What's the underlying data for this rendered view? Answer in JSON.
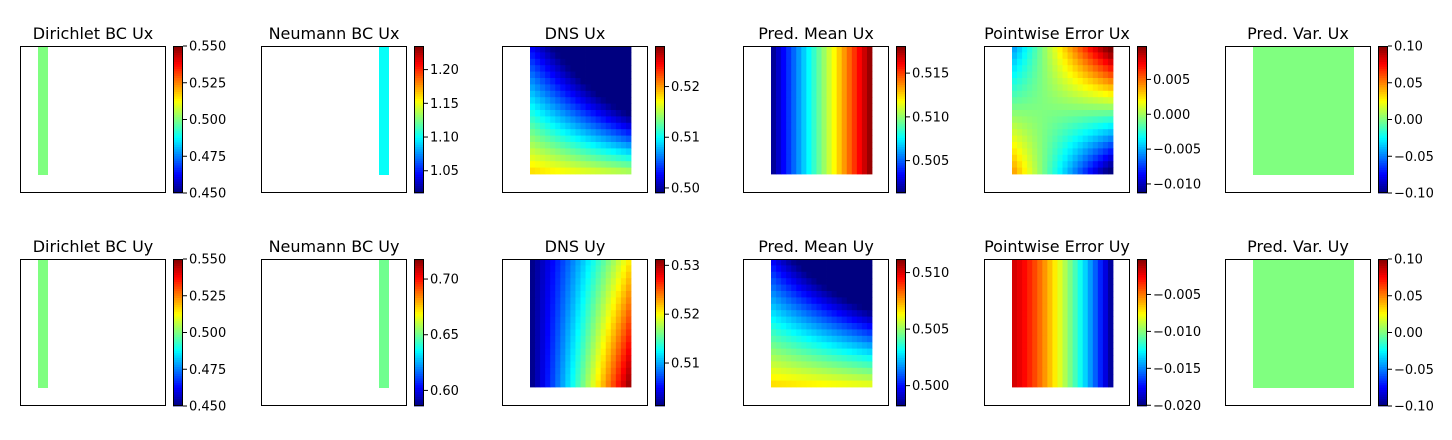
{
  "chart_data": [
    {
      "type": "heatmap",
      "title": "Dirichlet BC Ux",
      "fill": "bar-left",
      "value": 0.5,
      "clim": [
        0.45,
        0.55
      ],
      "cbar_ticks": [
        0.45,
        0.475,
        0.5,
        0.525,
        0.55
      ],
      "cbar_labels": [
        "0.450",
        "0.475",
        "0.500",
        "0.525",
        "0.550"
      ]
    },
    {
      "type": "heatmap",
      "title": "Neumann BC Ux",
      "fill": "bar-right",
      "value": 1.1,
      "clim": [
        1.017,
        1.235
      ],
      "cbar_ticks": [
        1.05,
        1.1,
        1.15,
        1.2
      ],
      "cbar_labels": [
        "1.05",
        "1.10",
        "1.15",
        "1.20"
      ]
    },
    {
      "type": "heatmap",
      "title": "DNS Ux",
      "fill": "field",
      "pattern": "ux-diag",
      "clim": [
        0.499,
        0.528
      ],
      "cbar_ticks": [
        0.5,
        0.51,
        0.52
      ],
      "cbar_labels": [
        "0.50",
        "0.51",
        "0.52"
      ]
    },
    {
      "type": "heatmap",
      "title": "Pred. Mean Ux",
      "fill": "field",
      "pattern": "x-ramp",
      "clim": [
        0.5013,
        0.5181
      ],
      "cbar_ticks": [
        0.505,
        0.51,
        0.515
      ],
      "cbar_labels": [
        "0.505",
        "0.510",
        "0.515"
      ]
    },
    {
      "type": "heatmap",
      "title": "Pointwise Error Ux",
      "fill": "field",
      "pattern": "err-ux",
      "clim": [
        -0.0113,
        0.0098
      ],
      "cbar_ticks": [
        -0.01,
        -0.005,
        0.0,
        0.005
      ],
      "cbar_labels": [
        "−0.010",
        "−0.005",
        "0.000",
        "0.005"
      ]
    },
    {
      "type": "heatmap",
      "title": "Pred. Var. Ux",
      "fill": "const",
      "value": 0.0,
      "clim": [
        -0.1,
        0.1
      ],
      "cbar_ticks": [
        -0.1,
        -0.05,
        0.0,
        0.05,
        0.1
      ],
      "cbar_labels": [
        "−0.10",
        "−0.05",
        "0.00",
        "0.05",
        "0.10"
      ]
    },
    {
      "type": "heatmap",
      "title": "Dirichlet BC Uy",
      "fill": "bar-left",
      "value": 0.5,
      "clim": [
        0.45,
        0.55
      ],
      "cbar_ticks": [
        0.45,
        0.475,
        0.5,
        0.525,
        0.55
      ],
      "cbar_labels": [
        "0.450",
        "0.475",
        "0.500",
        "0.525",
        "0.550"
      ]
    },
    {
      "type": "heatmap",
      "title": "Neumann BC Uy",
      "fill": "bar-right",
      "value": 0.65,
      "clim": [
        0.586,
        0.718
      ],
      "cbar_ticks": [
        0.6,
        0.65,
        0.7
      ],
      "cbar_labels": [
        "0.60",
        "0.65",
        "0.70"
      ]
    },
    {
      "type": "heatmap",
      "title": "DNS Uy",
      "fill": "field",
      "pattern": "uy-ramp",
      "clim": [
        0.5012,
        0.5313
      ],
      "cbar_ticks": [
        0.51,
        0.52,
        0.53
      ],
      "cbar_labels": [
        "0.51",
        "0.52",
        "0.53"
      ]
    },
    {
      "type": "heatmap",
      "title": "Pred. Mean Uy",
      "fill": "field",
      "pattern": "uy-diag",
      "clim": [
        0.4982,
        0.5112
      ],
      "cbar_ticks": [
        0.5,
        0.505,
        0.51
      ],
      "cbar_labels": [
        "0.500",
        "0.505",
        "0.510"
      ]
    },
    {
      "type": "heatmap",
      "title": "Pointwise Error Uy",
      "fill": "field",
      "pattern": "err-uy",
      "clim": [
        -0.0201,
        -0.0002
      ],
      "cbar_ticks": [
        -0.02,
        -0.015,
        -0.01,
        -0.005
      ],
      "cbar_labels": [
        "−0.020",
        "−0.015",
        "−0.010",
        "−0.005"
      ]
    },
    {
      "type": "heatmap",
      "title": "Pred. Var. Uy",
      "fill": "const",
      "value": 0.0,
      "clim": [
        -0.1,
        0.1
      ],
      "cbar_ticks": [
        -0.1,
        -0.05,
        0.0,
        0.05,
        0.1
      ],
      "cbar_labels": [
        "−0.10",
        "−0.05",
        "0.00",
        "0.05",
        "0.10"
      ]
    }
  ],
  "colormap": "jet"
}
